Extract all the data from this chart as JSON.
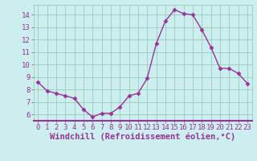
{
  "x": [
    0,
    1,
    2,
    3,
    4,
    5,
    6,
    7,
    8,
    9,
    10,
    11,
    12,
    13,
    14,
    15,
    16,
    17,
    18,
    19,
    20,
    21,
    22,
    23
  ],
  "y": [
    8.6,
    7.9,
    7.7,
    7.5,
    7.3,
    6.4,
    5.8,
    6.1,
    6.1,
    6.6,
    7.5,
    7.7,
    8.9,
    11.7,
    13.5,
    14.4,
    14.1,
    14.0,
    12.8,
    11.4,
    9.7,
    9.7,
    9.3,
    8.5
  ],
  "line_color": "#993399",
  "marker_color": "#993399",
  "bg_color": "#cceeee",
  "grid_color": "#99ccbb",
  "xlabel": "Windchill (Refroidissement éolien,°C)",
  "xlabel_color": "#993399",
  "xlim": [
    -0.5,
    23.5
  ],
  "ylim": [
    5.5,
    14.8
  ],
  "yticks": [
    6,
    7,
    8,
    9,
    10,
    11,
    12,
    13,
    14
  ],
  "xticks": [
    0,
    1,
    2,
    3,
    4,
    5,
    6,
    7,
    8,
    9,
    10,
    11,
    12,
    13,
    14,
    15,
    16,
    17,
    18,
    19,
    20,
    21,
    22,
    23
  ],
  "tick_label_color": "#993399",
  "tick_label_fontsize": 6.5,
  "xlabel_fontsize": 7.5,
  "line_width": 1.0,
  "marker_size": 2.5,
  "spine_color": "#993399"
}
